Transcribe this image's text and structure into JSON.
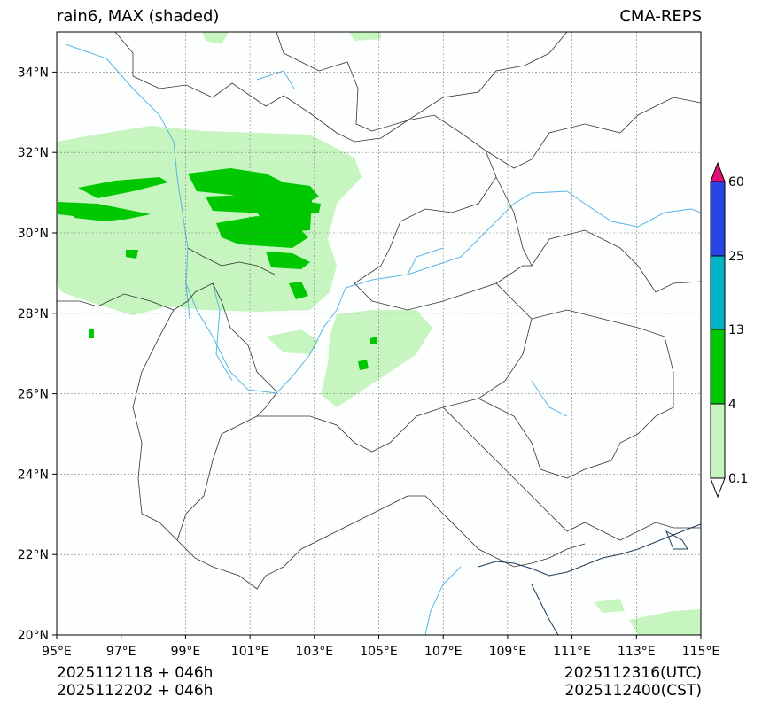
{
  "header": {
    "title_left": "rain6, MAX (shaded)",
    "title_right": "CMA-REPS"
  },
  "map": {
    "lon_range": [
      95,
      115
    ],
    "lat_range": [
      20,
      35
    ],
    "lon_ticks": [
      "95°E",
      "97°E",
      "99°E",
      "101°E",
      "103°E",
      "105°E",
      "107°E",
      "109°E",
      "111°E",
      "113°E",
      "115°E"
    ],
    "lat_ticks": [
      "20°N",
      "22°N",
      "24°N",
      "26°N",
      "28°N",
      "30°N",
      "32°N",
      "34°N"
    ]
  },
  "colorbar": {
    "levels": [
      "0.1",
      "4",
      "13",
      "25",
      "60"
    ],
    "colors": [
      "#c6f5c0",
      "#00c800",
      "#00b4c8",
      "#2846e6"
    ],
    "under_color": "#ffffff",
    "over_color": "#e0107a"
  },
  "footer": {
    "left_line1": "2025112118  +  046h",
    "left_line2": "2025112202  +  046h",
    "right_line1": "2025112316(UTC)",
    "right_line2": "2025112400(CST)"
  }
}
